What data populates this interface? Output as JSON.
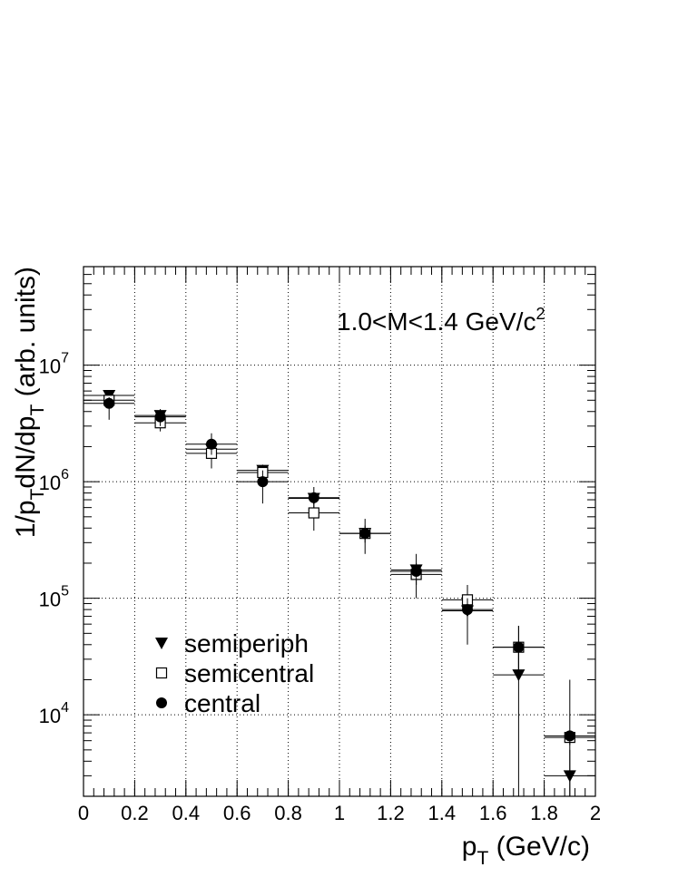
{
  "chart_data": {
    "type": "scatter",
    "title": "",
    "annotation": {
      "main": "1.0<M<1.4 GeV/c",
      "sup": "2"
    },
    "xlabel": {
      "main": "p",
      "sub": "T",
      "rest": " (GeV/c)"
    },
    "ylabel": {
      "parts": [
        {
          "t": "1/p",
          "s": "n"
        },
        {
          "t": "T",
          "s": "sub"
        },
        {
          "t": "dN/dp",
          "s": "n"
        },
        {
          "t": "T",
          "s": "sub"
        },
        {
          "t": " (arb. units)",
          "s": "n"
        }
      ]
    },
    "xlim": [
      0,
      2
    ],
    "ylim": [
      2000,
      70000000
    ],
    "yscale": "log",
    "grid": true,
    "x_ticks": [
      "0",
      "0.2",
      "0.4",
      "0.6",
      "0.8",
      "1",
      "1.2",
      "1.4",
      "1.6",
      "1.8",
      "2"
    ],
    "y_ticks": [
      {
        "base": "10",
        "exp": "4",
        "value": 10000
      },
      {
        "base": "10",
        "exp": "5",
        "value": 100000
      },
      {
        "base": "10",
        "exp": "6",
        "value": 1000000
      },
      {
        "base": "10",
        "exp": "7",
        "value": 10000000
      }
    ],
    "legend_position": "bottom-left",
    "series": [
      {
        "name": "semiperiph",
        "marker": "triangle-down-filled",
        "points": [
          {
            "x": 0.1,
            "xerr": 0.1,
            "y": 5500000,
            "ylo": 5000000,
            "yhi": 6000000
          },
          {
            "x": 0.3,
            "xerr": 0.1,
            "y": 3700000,
            "ylo": 3400000,
            "yhi": 4000000
          },
          {
            "x": 0.5,
            "xerr": 0.1,
            "y": 1900000,
            "ylo": 1700000,
            "yhi": 2100000
          },
          {
            "x": 0.7,
            "xerr": 0.1,
            "y": 1250000,
            "ylo": 1100000,
            "yhi": 1400000
          },
          {
            "x": 0.9,
            "xerr": 0.1,
            "y": 720000,
            "ylo": 640000,
            "yhi": 800000
          },
          {
            "x": 1.1,
            "xerr": 0.1,
            "y": 360000,
            "ylo": 320000,
            "yhi": 400000
          },
          {
            "x": 1.3,
            "xerr": 0.1,
            "y": 175000,
            "ylo": 150000,
            "yhi": 240000
          },
          {
            "x": 1.5,
            "xerr": 0.1,
            "y": 78000,
            "ylo": 40000,
            "yhi": 105000
          },
          {
            "x": 1.7,
            "xerr": 0.1,
            "y": 22000,
            "ylo": 2000,
            "yhi": 42000
          },
          {
            "x": 1.9,
            "xerr": 0.1,
            "y": 3000,
            "ylo": 2000,
            "yhi": 5000
          }
        ]
      },
      {
        "name": "semicentral",
        "marker": "square-open",
        "points": [
          {
            "x": 0.1,
            "xerr": 0.1,
            "y": 5000000,
            "ylo": 4500000,
            "yhi": 5500000
          },
          {
            "x": 0.3,
            "xerr": 0.1,
            "y": 3200000,
            "ylo": 2700000,
            "yhi": 3600000
          },
          {
            "x": 0.5,
            "xerr": 0.1,
            "y": 1750000,
            "ylo": 1300000,
            "yhi": 2000000
          },
          {
            "x": 0.7,
            "xerr": 0.1,
            "y": 1200000,
            "ylo": 1050000,
            "yhi": 1350000
          },
          {
            "x": 0.9,
            "xerr": 0.1,
            "y": 540000,
            "ylo": 380000,
            "yhi": 640000
          },
          {
            "x": 1.1,
            "xerr": 0.1,
            "y": 360000,
            "ylo": 240000,
            "yhi": 480000
          },
          {
            "x": 1.3,
            "xerr": 0.1,
            "y": 160000,
            "ylo": 130000,
            "yhi": 190000
          },
          {
            "x": 1.5,
            "xerr": 0.1,
            "y": 97000,
            "ylo": 75000,
            "yhi": 130000
          },
          {
            "x": 1.7,
            "xerr": 0.1,
            "y": 38000,
            "ylo": 22000,
            "yhi": 58000
          },
          {
            "x": 1.9,
            "xerr": 0.1,
            "y": 6400,
            "ylo": 5500,
            "yhi": 7200
          }
        ]
      },
      {
        "name": "central",
        "marker": "circle-filled",
        "points": [
          {
            "x": 0.1,
            "xerr": 0.1,
            "y": 4700000,
            "ylo": 3400000,
            "yhi": 5300000
          },
          {
            "x": 0.3,
            "xerr": 0.1,
            "y": 3600000,
            "ylo": 3000000,
            "yhi": 4200000
          },
          {
            "x": 0.5,
            "xerr": 0.1,
            "y": 2100000,
            "ylo": 1700000,
            "yhi": 2600000
          },
          {
            "x": 0.7,
            "xerr": 0.1,
            "y": 1000000,
            "ylo": 650000,
            "yhi": 1250000
          },
          {
            "x": 0.9,
            "xerr": 0.1,
            "y": 730000,
            "ylo": 600000,
            "yhi": 900000
          },
          {
            "x": 1.1,
            "xerr": 0.1,
            "y": 360000,
            "ylo": 300000,
            "yhi": 420000
          },
          {
            "x": 1.3,
            "xerr": 0.1,
            "y": 170000,
            "ylo": 100000,
            "yhi": 200000
          },
          {
            "x": 1.5,
            "xerr": 0.1,
            "y": 80000,
            "ylo": 60000,
            "yhi": 100000
          },
          {
            "x": 1.7,
            "xerr": 0.1,
            "y": 38000,
            "ylo": 22000,
            "yhi": 58000
          },
          {
            "x": 1.9,
            "xerr": 0.1,
            "y": 6600,
            "ylo": 2000,
            "yhi": 20000
          }
        ]
      }
    ]
  }
}
